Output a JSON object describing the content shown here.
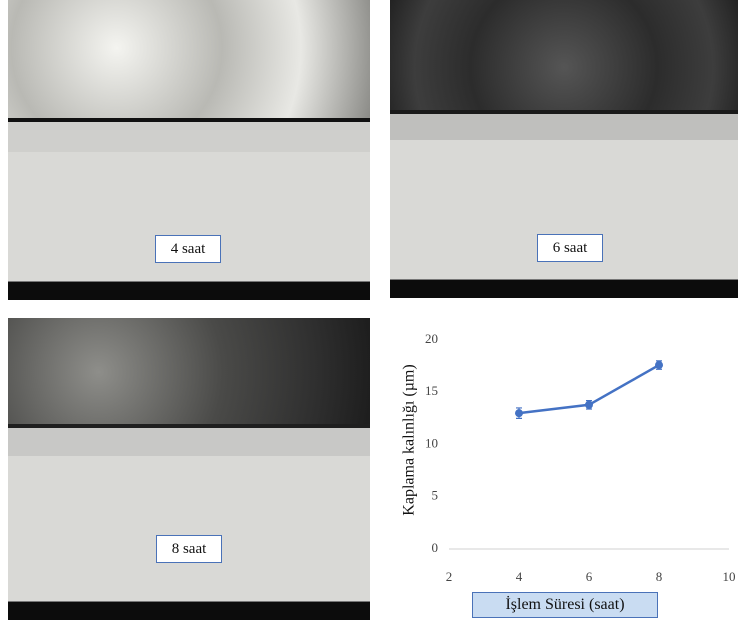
{
  "panels": [
    {
      "label": "4 saat"
    },
    {
      "label": "6 saat"
    },
    {
      "label": "8 saat"
    }
  ],
  "chart_data": {
    "type": "line",
    "x_label": "İşlem Süresi (saat)",
    "y_label": "Kaplama kalınlığı (µm)",
    "x": [
      4,
      6,
      8
    ],
    "series": [
      {
        "color": "#4472c4",
        "values": [
          13.0,
          13.8,
          17.6
        ],
        "errors": [
          0.5,
          0.4,
          0.4
        ]
      }
    ],
    "xlim": [
      2,
      10
    ],
    "xticks": [
      2,
      4,
      6,
      8,
      10
    ],
    "ylim": [
      0,
      20
    ],
    "yticks": [
      0,
      5,
      10,
      15,
      20
    ]
  }
}
